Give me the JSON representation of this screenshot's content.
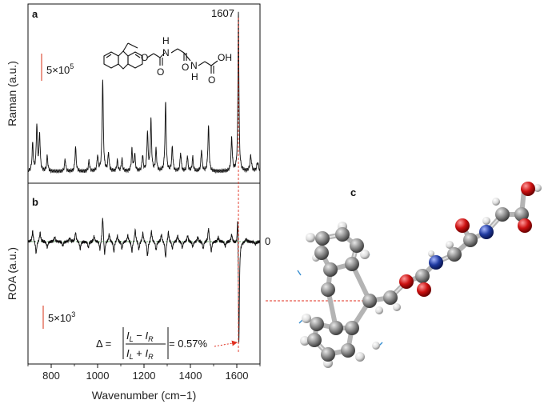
{
  "chart_data": [
    {
      "id": "a",
      "type": "line",
      "panel_label": "a",
      "ylabel": "Raman (a.u.)",
      "xlim": [
        700,
        1700
      ],
      "peak_label": "1607",
      "scale_bar_label": "5×10",
      "scale_bar_exp": "5",
      "molecule_labels": {
        "nh1": "H",
        "n1": "N",
        "o1": "O",
        "o2": "O",
        "o3": "O",
        "nh2": "N",
        "h2": "H",
        "oh": "OH",
        "o4": "O"
      },
      "peaks": [
        {
          "x": 720,
          "h": 0.18,
          "w": 3
        },
        {
          "x": 738,
          "h": 0.3,
          "w": 3
        },
        {
          "x": 750,
          "h": 0.24,
          "w": 3
        },
        {
          "x": 783,
          "h": 0.1,
          "w": 3
        },
        {
          "x": 860,
          "h": 0.08,
          "w": 3
        },
        {
          "x": 905,
          "h": 0.16,
          "w": 3
        },
        {
          "x": 963,
          "h": 0.07,
          "w": 3
        },
        {
          "x": 1000,
          "h": 0.1,
          "w": 3
        },
        {
          "x": 1022,
          "h": 0.6,
          "w": 3
        },
        {
          "x": 1047,
          "h": 0.12,
          "w": 3
        },
        {
          "x": 1085,
          "h": 0.07,
          "w": 3
        },
        {
          "x": 1105,
          "h": 0.08,
          "w": 3
        },
        {
          "x": 1148,
          "h": 0.14,
          "w": 3
        },
        {
          "x": 1160,
          "h": 0.11,
          "w": 3
        },
        {
          "x": 1194,
          "h": 0.1,
          "w": 3
        },
        {
          "x": 1215,
          "h": 0.25,
          "w": 3
        },
        {
          "x": 1230,
          "h": 0.33,
          "w": 3
        },
        {
          "x": 1252,
          "h": 0.14,
          "w": 3
        },
        {
          "x": 1293,
          "h": 0.45,
          "w": 3
        },
        {
          "x": 1322,
          "h": 0.16,
          "w": 3
        },
        {
          "x": 1358,
          "h": 0.12,
          "w": 3
        },
        {
          "x": 1387,
          "h": 0.1,
          "w": 3
        },
        {
          "x": 1410,
          "h": 0.09,
          "w": 3
        },
        {
          "x": 1448,
          "h": 0.14,
          "w": 3
        },
        {
          "x": 1478,
          "h": 0.3,
          "w": 3
        },
        {
          "x": 1578,
          "h": 0.22,
          "w": 3
        },
        {
          "x": 1607,
          "h": 1.05,
          "w": 2.5
        },
        {
          "x": 1660,
          "h": 0.1,
          "w": 4
        },
        {
          "x": 1690,
          "h": 0.06,
          "w": 4
        }
      ]
    },
    {
      "id": "b",
      "type": "line",
      "panel_label": "b",
      "xlabel": "Wavenumber (cm−1)",
      "ylabel": "ROA (a.u.)",
      "xlim": [
        700,
        1700
      ],
      "x_ticks": [
        800,
        1000,
        1200,
        1400,
        1600
      ],
      "x_tick_labels": [
        "800",
        "1000",
        "1200",
        "1400",
        "1600"
      ],
      "zero_label": "0",
      "scale_bar_label": "5×10",
      "scale_bar_exp": "3",
      "formula": {
        "lhs": "Δ = ",
        "num": "I",
        "num_sub_l": "L",
        "minus": " − ",
        "num_sub_r": "R",
        "plus": " + ",
        "rhs": " = 0.57%"
      },
      "features": [
        {
          "x": 720,
          "h": 0.35,
          "w": 3
        },
        {
          "x": 735,
          "h": -0.4,
          "w": 3
        },
        {
          "x": 752,
          "h": 0.3,
          "w": 3
        },
        {
          "x": 783,
          "h": -0.2,
          "w": 3
        },
        {
          "x": 815,
          "h": 0.15,
          "w": 3
        },
        {
          "x": 850,
          "h": -0.15,
          "w": 3
        },
        {
          "x": 880,
          "h": 0.12,
          "w": 3
        },
        {
          "x": 905,
          "h": 0.3,
          "w": 3
        },
        {
          "x": 925,
          "h": -0.25,
          "w": 3
        },
        {
          "x": 960,
          "h": -0.2,
          "w": 3
        },
        {
          "x": 985,
          "h": 0.18,
          "w": 3
        },
        {
          "x": 1010,
          "h": -0.3,
          "w": 3
        },
        {
          "x": 1022,
          "h": 0.85,
          "w": 3
        },
        {
          "x": 1030,
          "h": -0.5,
          "w": 3
        },
        {
          "x": 1050,
          "h": 0.25,
          "w": 3
        },
        {
          "x": 1070,
          "h": -0.35,
          "w": 3
        },
        {
          "x": 1085,
          "h": 0.2,
          "w": 3
        },
        {
          "x": 1105,
          "h": -0.25,
          "w": 3
        },
        {
          "x": 1130,
          "h": 0.22,
          "w": 3
        },
        {
          "x": 1148,
          "h": -0.35,
          "w": 3
        },
        {
          "x": 1162,
          "h": 0.4,
          "w": 3
        },
        {
          "x": 1178,
          "h": -0.28,
          "w": 3
        },
        {
          "x": 1195,
          "h": 0.3,
          "w": 3
        },
        {
          "x": 1215,
          "h": -0.5,
          "w": 3
        },
        {
          "x": 1232,
          "h": 0.35,
          "w": 3
        },
        {
          "x": 1252,
          "h": -0.3,
          "w": 3
        },
        {
          "x": 1275,
          "h": 0.25,
          "w": 3
        },
        {
          "x": 1293,
          "h": -0.55,
          "w": 3
        },
        {
          "x": 1305,
          "h": 0.35,
          "w": 3
        },
        {
          "x": 1322,
          "h": -0.25,
          "w": 3
        },
        {
          "x": 1345,
          "h": 0.2,
          "w": 3
        },
        {
          "x": 1365,
          "h": -0.22,
          "w": 3
        },
        {
          "x": 1388,
          "h": 0.2,
          "w": 3
        },
        {
          "x": 1410,
          "h": -0.18,
          "w": 3
        },
        {
          "x": 1432,
          "h": 0.15,
          "w": 3
        },
        {
          "x": 1455,
          "h": -0.25,
          "w": 3
        },
        {
          "x": 1478,
          "h": 0.45,
          "w": 3
        },
        {
          "x": 1490,
          "h": -0.35,
          "w": 3
        },
        {
          "x": 1520,
          "h": 0.15,
          "w": 3
        },
        {
          "x": 1550,
          "h": -0.15,
          "w": 3
        },
        {
          "x": 1578,
          "h": 0.25,
          "w": 3
        },
        {
          "x": 1604,
          "h": 1.35,
          "w": 2.5
        },
        {
          "x": 1609,
          "h": -3.6,
          "w": 2.5
        },
        {
          "x": 1640,
          "h": 0.1,
          "w": 4
        },
        {
          "x": 1680,
          "h": -0.08,
          "w": 4
        }
      ]
    }
  ],
  "molecule_3d": {
    "panel_label": "c",
    "colors": {
      "carbon": "#8c8c8c",
      "hydrogen": "#e6e6e6",
      "oxygen": "#cc1111",
      "nitrogen": "#1f3aa0",
      "vector": "#3a8fd0",
      "guide": "#e03020"
    }
  }
}
